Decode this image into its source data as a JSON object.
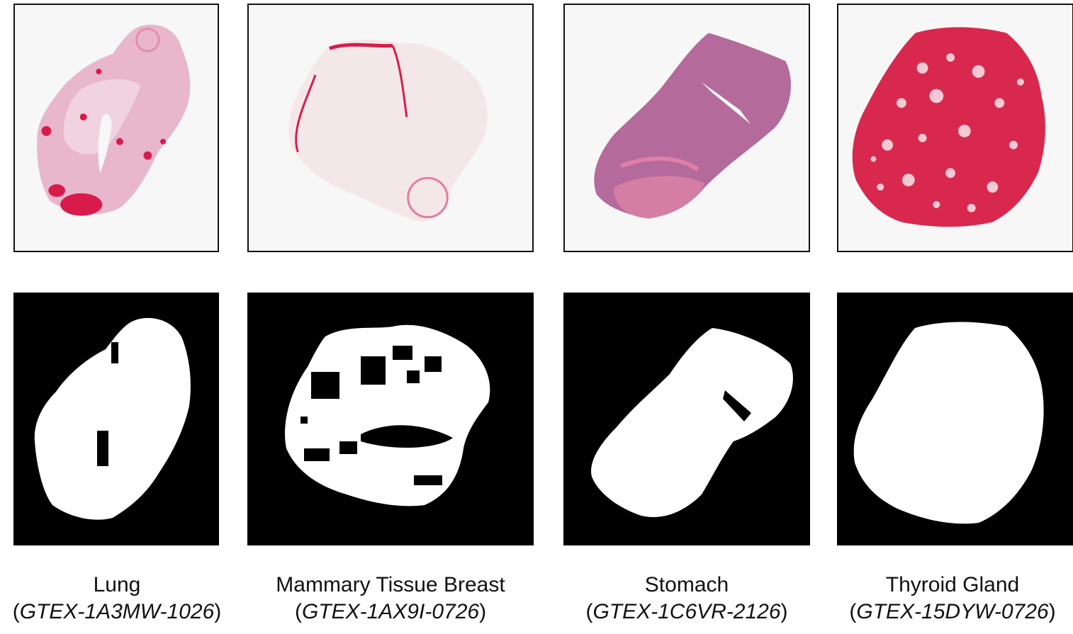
{
  "samples": [
    {
      "tissue": "Lung",
      "sample_id": "GTEX-1A3MW-1026"
    },
    {
      "tissue": "Mammary Tissue Breast",
      "sample_id": "GTEX-1AX9I-0726"
    },
    {
      "tissue": "Stomach",
      "sample_id": "GTEX-1C6VR-2126"
    },
    {
      "tissue": "Thyroid Gland",
      "sample_id": "GTEX-15DYW-0726"
    }
  ],
  "colors": {
    "slide_background": "#f7f7f7",
    "tissue_pink": "#e8a6c0",
    "stain_red": "#d81b4b",
    "stomach_purple": "#b56a9c",
    "thyroid_red": "#d8284e",
    "mask_background": "#000000",
    "mask_foreground": "#ffffff"
  }
}
